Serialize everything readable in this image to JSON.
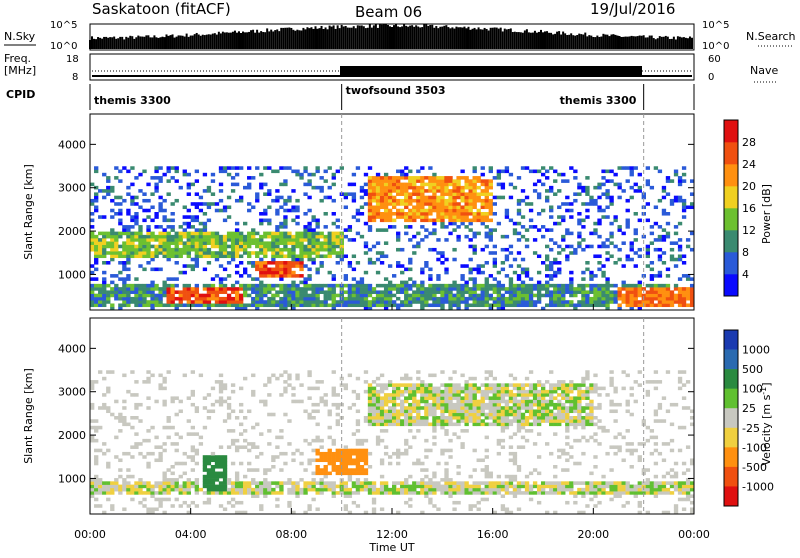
{
  "header": {
    "title": "Saskatoon (fitACF)",
    "beam": "Beam 06",
    "date": "19/Jul/2016"
  },
  "side_labels": {
    "nsky": "N.Sky",
    "freq": "Freq.",
    "mhz": "[MHz]",
    "cpid": "CPID",
    "nsearch": "N.Search",
    "nave": "Nave"
  },
  "noise_axis": {
    "left": [
      "10^5",
      "10^0"
    ],
    "right": [
      "10^5",
      "10^0"
    ]
  },
  "freq_axis": {
    "left": [
      "18",
      "8"
    ],
    "right": [
      "60",
      "0"
    ]
  },
  "cpid_segments": [
    {
      "label": "themis 3300",
      "start_h": 0,
      "end_h": 10
    },
    {
      "label": "twofsound 3503",
      "start_h": 10,
      "end_h": 22
    },
    {
      "label": "themis 3300",
      "start_h": 22,
      "end_h": 24
    }
  ],
  "range_axis": {
    "label": "Slant Range [km]",
    "ticks": [
      1000,
      2000,
      3000,
      4000
    ],
    "min": 180,
    "max": 4700
  },
  "time_axis": {
    "label": "Time UT",
    "ticks": [
      "00:00",
      "04:00",
      "08:00",
      "12:00",
      "16:00",
      "20:00",
      "00:00"
    ],
    "min_h": 0,
    "max_h": 24
  },
  "power_colorbar": {
    "title": "Power [dB]",
    "ticks": [
      "4",
      "8",
      "12",
      "16",
      "20",
      "24",
      "28"
    ],
    "colors": [
      "#0a0aff",
      "#2a5ad8",
      "#3a8a70",
      "#6cc030",
      "#f0d020",
      "#ff9010",
      "#f05010",
      "#e01010"
    ]
  },
  "velocity_colorbar": {
    "title": "Velocity [m s-1]",
    "ticks": [
      "1000",
      "500",
      "100",
      "25",
      "-25",
      "-100",
      "-500",
      "-1000"
    ],
    "colors": [
      "#1a3ab0",
      "#2a6ab0",
      "#2a8a40",
      "#60c030",
      "#c8c8c0",
      "#f0d040",
      "#ff9010",
      "#f05010",
      "#e01010"
    ]
  },
  "chart_data": [
    {
      "type": "heatmap",
      "title": "Power [dB]",
      "xlabel": "Time UT",
      "ylabel": "Slant Range [km]",
      "xlim": [
        0,
        24
      ],
      "ylim": [
        180,
        4700
      ],
      "features": [
        {
          "desc": "near-range band",
          "t": [
            0,
            24
          ],
          "range_km": [
            250,
            800
          ],
          "power_db": 10
        },
        {
          "desc": "strong E-region echoes",
          "t": [
            3,
            6
          ],
          "range_km": [
            300,
            700
          ],
          "power_db": 26
        },
        {
          "desc": "strong echoes",
          "t": [
            6.5,
            8.5
          ],
          "range_km": [
            900,
            1300
          ],
          "power_db": 26
        },
        {
          "desc": "mid band",
          "t": [
            0,
            10
          ],
          "range_km": [
            1400,
            2000
          ],
          "power_db": 14
        },
        {
          "desc": "upper layer",
          "t": [
            11,
            16
          ],
          "range_km": [
            2200,
            3300
          ],
          "power_db": 22
        },
        {
          "desc": "dawn echoes",
          "t": [
            21,
            24
          ],
          "range_km": [
            250,
            700
          ],
          "power_db": 24
        }
      ]
    },
    {
      "type": "heatmap",
      "title": "Velocity [m s-1]",
      "xlabel": "Time UT",
      "ylabel": "Slant Range [km]",
      "xlim": [
        0,
        24
      ],
      "ylim": [
        180,
        4700
      ],
      "features": [
        {
          "desc": "ground scatter band",
          "t": [
            0,
            24
          ],
          "range_km": [
            600,
            900
          ],
          "velocity_ms": 0
        },
        {
          "desc": "positive flow",
          "t": [
            4.5,
            5.5
          ],
          "range_km": [
            700,
            1500
          ],
          "velocity_ms": 300
        },
        {
          "desc": "negative flow",
          "t": [
            9,
            11
          ],
          "range_km": [
            1100,
            1700
          ],
          "velocity_ms": -400
        },
        {
          "desc": "upper ground scatter",
          "t": [
            11,
            20
          ],
          "range_km": [
            2200,
            3200
          ],
          "velocity_ms": 0
        }
      ]
    }
  ]
}
